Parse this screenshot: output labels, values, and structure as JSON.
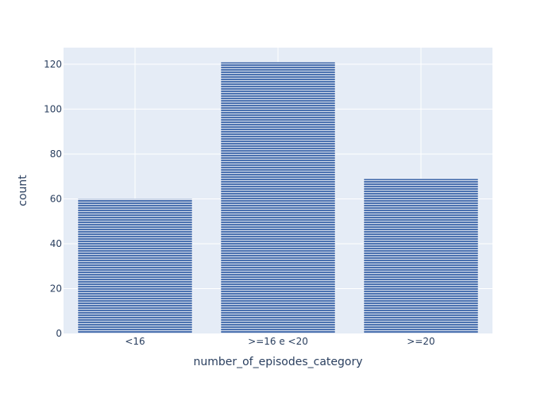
{
  "chart_data": {
    "type": "bar",
    "title": "",
    "xlabel": "number_of_episodes_category",
    "ylabel": "count",
    "categories": [
      "<16",
      ">=16 e <20",
      ">=20"
    ],
    "values": [
      60,
      121,
      69
    ],
    "ylim": [
      0,
      127.4
    ],
    "yticks": [
      0,
      20,
      40,
      60,
      80,
      100,
      120
    ],
    "grid": true,
    "legend": "none",
    "colors": {
      "plot_background": "#e5ecf6",
      "grid": "#ffffff",
      "bar_fill": "#4c72b0",
      "bar_stripe": "#ffffff",
      "text": "#2a3f5f"
    }
  }
}
